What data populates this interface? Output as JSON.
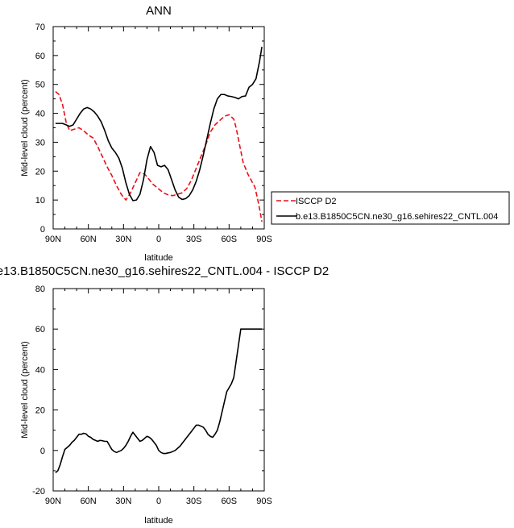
{
  "chart_data": [
    {
      "type": "line",
      "title": "ANN",
      "xlabel": "latitude",
      "ylabel": "Mid-level cloud (percent)",
      "xlim": [
        90,
        -90
      ],
      "ylim": [
        0,
        70
      ],
      "x_ticks": [
        90,
        60,
        30,
        0,
        -30,
        -60,
        -90
      ],
      "x_tick_labels": [
        "90N",
        "60N",
        "30N",
        "0",
        "30S",
        "60S",
        "90S"
      ],
      "y_ticks": [
        0,
        10,
        20,
        30,
        40,
        50,
        60,
        70
      ],
      "y_tick_labels": [
        "0",
        "10",
        "20",
        "30",
        "40",
        "50",
        "60",
        "70"
      ],
      "legend_position": "right",
      "series": [
        {
          "name": "ISCCP D2",
          "color": "#e8101a",
          "dash": "dashed",
          "x": [
            88,
            85,
            82,
            79,
            76,
            72,
            68,
            64,
            60,
            56,
            52,
            48,
            44,
            40,
            36,
            32,
            28,
            24,
            20,
            16,
            12,
            8,
            5,
            2,
            -1,
            -4,
            -8,
            -12,
            -16,
            -20,
            -24,
            -28,
            -32,
            -36,
            -40,
            -44,
            -48,
            -52,
            -56,
            -60,
            -64,
            -66,
            -68,
            -70,
            -72,
            -74,
            -76,
            -78,
            -80,
            -82,
            -84,
            -86,
            -88
          ],
          "y": [
            47.5,
            46.5,
            43,
            37,
            34,
            34.5,
            35,
            34,
            32.5,
            31.5,
            28.5,
            25,
            21.5,
            18.5,
            15,
            12,
            10,
            12.5,
            16,
            19.5,
            19,
            17,
            15.5,
            14.5,
            13.5,
            12.5,
            11.8,
            11.5,
            12,
            12.5,
            14,
            17,
            21,
            25,
            29,
            33.5,
            36,
            37.5,
            39,
            39.5,
            38,
            35,
            31,
            27,
            23,
            21,
            19,
            17.5,
            16,
            14.5,
            11,
            7,
            2.5
          ]
        },
        {
          "name": "b.e13.B1850C5CN.ne30_g16.sehires22_CNTL.004",
          "color": "#000000",
          "dash": "solid",
          "x": [
            88,
            85,
            82,
            79,
            76,
            73,
            70,
            67,
            64,
            61,
            58,
            55,
            52,
            49,
            46,
            43,
            40,
            37,
            34,
            31,
            28,
            25,
            22,
            19,
            16,
            13,
            10,
            7,
            4,
            1,
            -2,
            -5,
            -8,
            -11,
            -14,
            -17,
            -20,
            -23,
            -26,
            -29,
            -32,
            -35,
            -38,
            -41,
            -44,
            -47,
            -50,
            -53,
            -56,
            -59,
            -62,
            -65,
            -68,
            -71,
            -74,
            -77,
            -80,
            -83,
            -86,
            -88
          ],
          "y": [
            36.5,
            36.5,
            36.5,
            36,
            35.5,
            36,
            38,
            40,
            41.5,
            42,
            41.5,
            40.5,
            39,
            37,
            34,
            30.5,
            28,
            26.5,
            24.5,
            21,
            16,
            12,
            9.8,
            10,
            12,
            17,
            24,
            28.5,
            26.5,
            22,
            21.5,
            22,
            20.5,
            17,
            13.5,
            11,
            10.2,
            10.5,
            11.5,
            13.5,
            16.5,
            20.5,
            25.5,
            31,
            36.5,
            41.5,
            45,
            46.5,
            46.5,
            46,
            45.8,
            45.5,
            45,
            45.8,
            46,
            49,
            50,
            52,
            58,
            63
          ]
        }
      ]
    },
    {
      "type": "line",
      "title": "e13.B1850C5CN.ne30_g16.sehires22_CNTL.004 - ISCCP D2",
      "xlabel": "latitude",
      "ylabel": "Mid-level cloud (percent)",
      "xlim": [
        90,
        -90
      ],
      "ylim": [
        -20,
        80
      ],
      "x_ticks": [
        90,
        60,
        30,
        0,
        -30,
        -60,
        -90
      ],
      "x_tick_labels": [
        "90N",
        "60N",
        "30N",
        "0",
        "30S",
        "60S",
        "90S"
      ],
      "y_ticks": [
        -20,
        0,
        20,
        40,
        60,
        80
      ],
      "y_tick_labels": [
        "-20",
        "0",
        "20",
        "40",
        "60",
        "80"
      ],
      "series": [
        {
          "color": "#000000",
          "dash": "solid",
          "x": [
            88,
            86,
            84,
            82,
            80,
            78,
            76,
            74,
            72,
            70,
            68,
            66,
            64,
            62,
            60,
            58,
            56,
            54,
            52,
            50,
            48,
            46,
            44,
            42,
            40,
            38,
            36,
            34,
            32,
            30,
            28,
            26,
            24,
            22,
            20,
            18,
            16,
            14,
            12,
            10,
            8,
            6,
            4,
            2,
            0,
            -2,
            -4,
            -6,
            -8,
            -10,
            -12,
            -14,
            -16,
            -18,
            -20,
            -22,
            -24,
            -26,
            -28,
            -30,
            -32,
            -34,
            -36,
            -38,
            -40,
            -42,
            -44,
            -46,
            -48,
            -50,
            -52,
            -54,
            -56,
            -58,
            -60,
            -62,
            -64,
            -66,
            -68,
            -70,
            -72,
            -74,
            -76,
            -78,
            -80,
            -82,
            -84,
            -86,
            -88
          ],
          "y": [
            -11,
            -10,
            -7,
            -3,
            0.5,
            1.5,
            2.5,
            4,
            5,
            6.5,
            8,
            8,
            8.5,
            8.2,
            7,
            6.5,
            5.5,
            5,
            4.5,
            5,
            4.8,
            4.5,
            4.5,
            2.5,
            0.5,
            -0.5,
            -1,
            -0.5,
            0,
            1,
            2.5,
            4.5,
            7,
            9,
            7.5,
            6,
            4.5,
            5,
            6,
            7,
            6.5,
            5.5,
            4,
            2.5,
            0,
            -1,
            -1.5,
            -1.5,
            -1.2,
            -1,
            -0.5,
            0,
            1,
            2,
            3.5,
            5,
            6.5,
            8,
            9.5,
            11,
            12.5,
            12.5,
            12,
            11.5,
            10,
            8,
            7,
            6.5,
            8,
            10,
            14,
            19,
            24,
            29,
            31,
            33,
            36,
            44,
            52,
            60,
            60,
            60,
            60,
            60,
            60,
            60,
            60,
            60,
            60
          ]
        }
      ]
    }
  ],
  "legend": {
    "items": [
      {
        "label": "ISCCP D2"
      },
      {
        "label": "b.e13.B1850C5CN.ne30_g16.sehires22_CNTL.004"
      }
    ]
  }
}
